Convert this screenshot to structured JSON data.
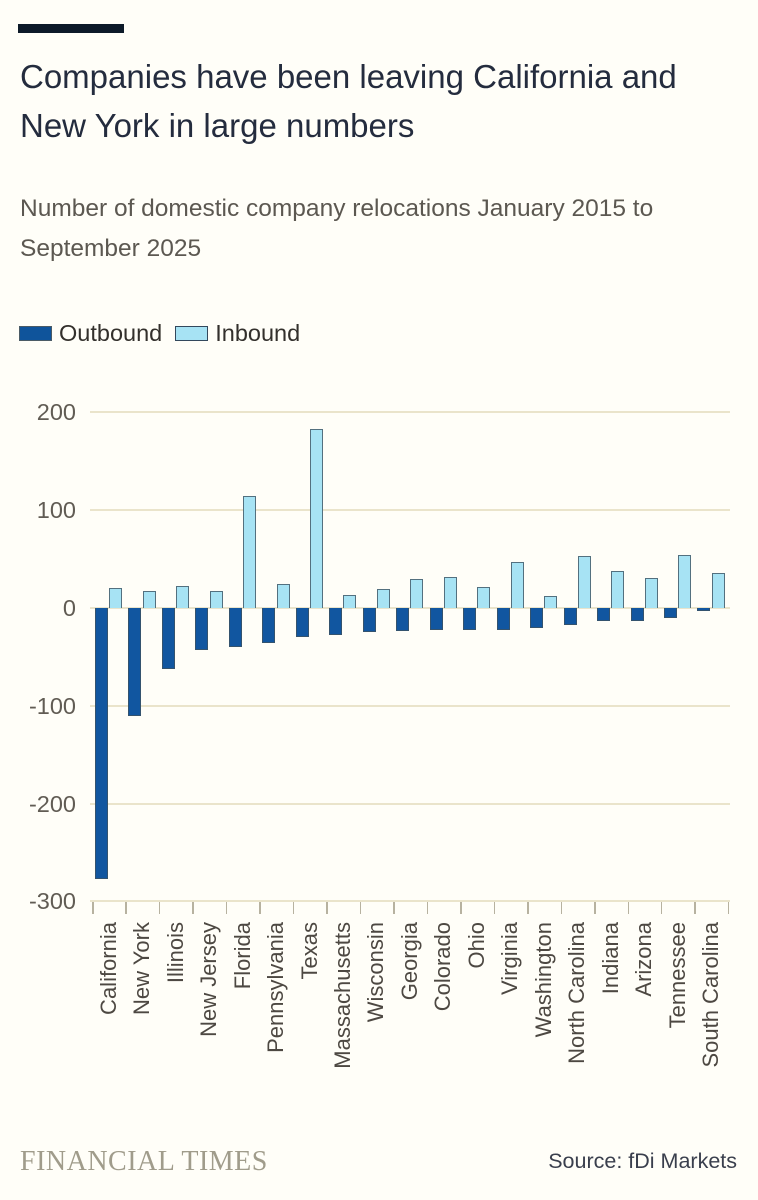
{
  "header": {
    "title": "Companies have been leaving California and New York in large numbers",
    "title_line1": "Companies have been leaving California and",
    "title_line2": "New York in large numbers",
    "subtitle_line1": "Number of domestic company relocations January 2015 to",
    "subtitle_line2": "September 2025"
  },
  "legend": {
    "items": [
      {
        "label": "Outbound",
        "color": "#0f549b"
      },
      {
        "label": "Inbound",
        "color": "#a7e3f4"
      }
    ]
  },
  "chart_data": {
    "type": "bar",
    "title": "Companies have been leaving California and New York in large numbers",
    "subtitle": "Number of domestic company relocations January 2015 to September 2025",
    "categories": [
      "California",
      "New York",
      "Illinois",
      "New Jersey",
      "Florida",
      "Pennsylvania",
      "Texas",
      "Massachusetts",
      "Wisconsin",
      "Georgia",
      "Colorado",
      "Ohio",
      "Virginia",
      "Washington",
      "North Carolina",
      "Indiana",
      "Arizona",
      "Tennessee",
      "South Carolina"
    ],
    "series": [
      {
        "name": "Outbound",
        "color": "#0f549b",
        "values": [
          -277,
          -110,
          -62,
          -43,
          -40,
          -36,
          -30,
          -28,
          -25,
          -24,
          -23,
          -22,
          -22,
          -20,
          -17,
          -13,
          -13,
          -10,
          -3
        ]
      },
      {
        "name": "Inbound",
        "color": "#a7e3f4",
        "values": [
          20,
          17,
          22,
          17,
          115,
          25,
          183,
          13,
          19,
          30,
          32,
          21,
          47,
          12,
          53,
          38,
          31,
          54,
          36
        ]
      }
    ],
    "xlabel": "",
    "ylabel": "",
    "ylim": [
      -300,
      200
    ],
    "yticks": [
      200,
      100,
      0,
      -100,
      -200,
      -300
    ],
    "grid": "horizontal",
    "legend_position": "top-left"
  },
  "footer": {
    "brand": "FINANCIAL TIMES",
    "source": "Source: fDi Markets"
  }
}
